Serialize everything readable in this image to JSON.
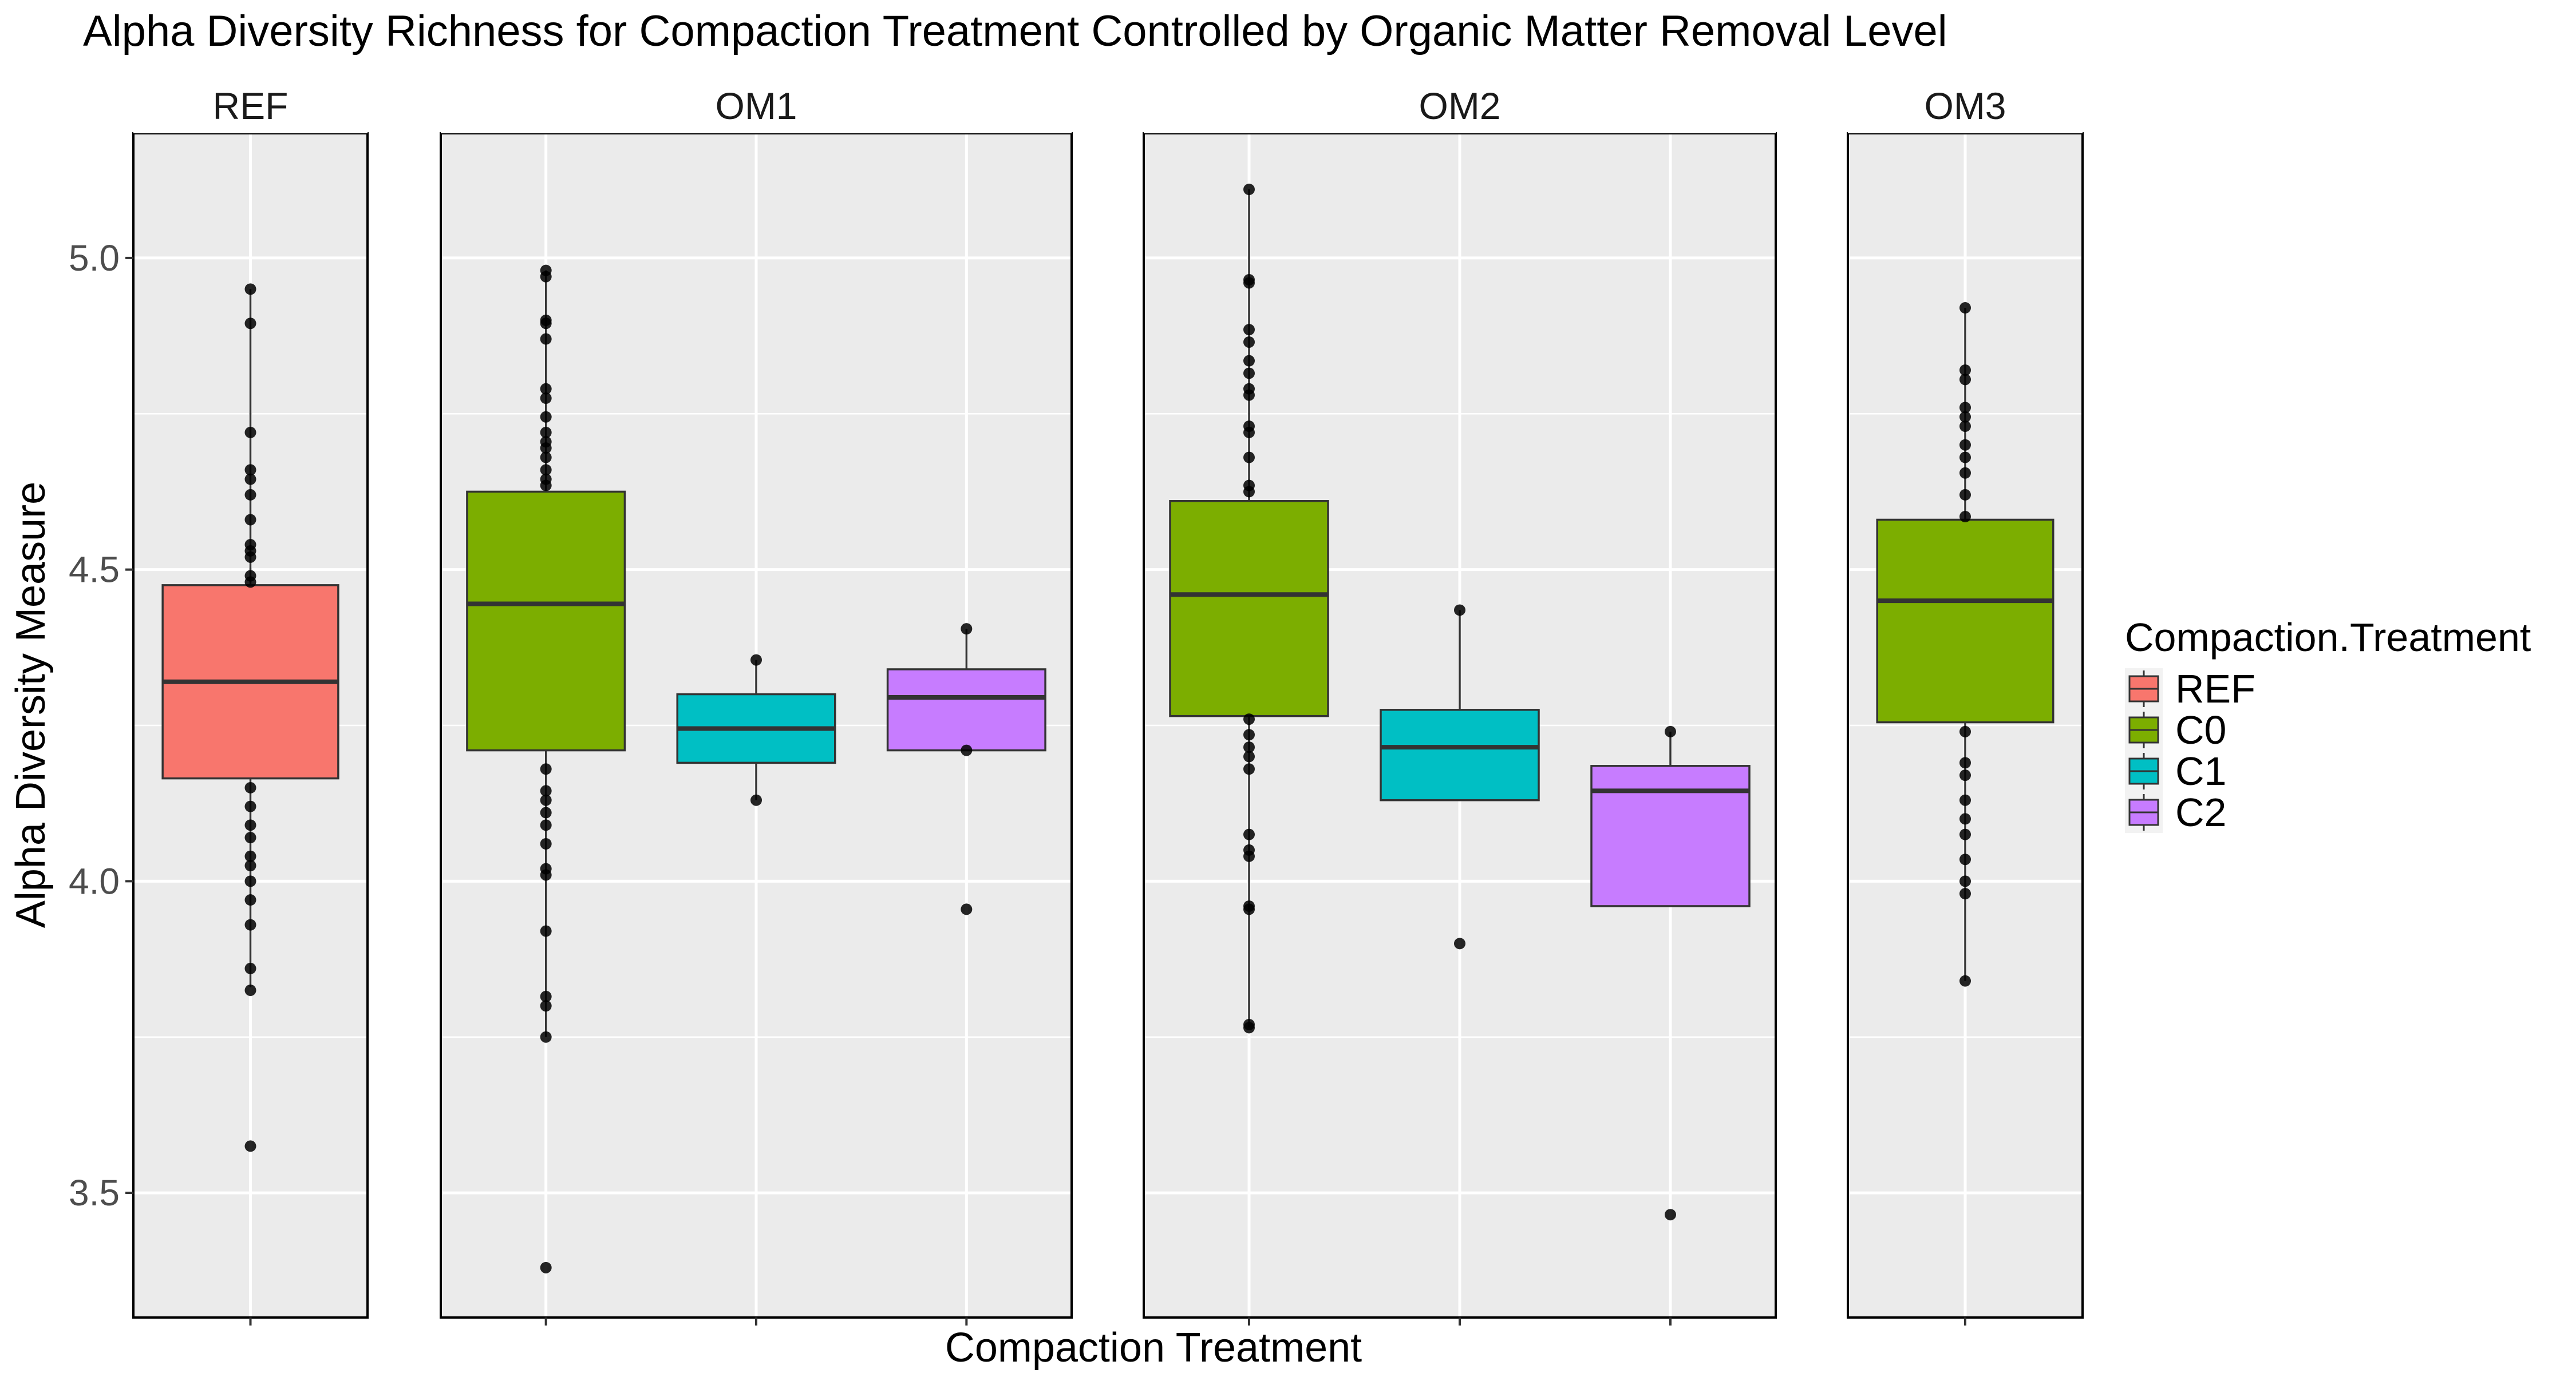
{
  "chart_data": {
    "type": "boxplot",
    "title": "Alpha Diversity Richness for Compaction Treatment Controlled by Organic Matter Removal Level",
    "xlabel": "Compaction Treatment",
    "ylabel": "Alpha Diversity Measure",
    "ylim": [
      3.3,
      5.2
    ],
    "yticks": [
      "3.5",
      "4.0",
      "4.5",
      "5.0"
    ],
    "grid": true,
    "legend": {
      "title": "Compaction.Treatment",
      "placement": "right",
      "entries": [
        {
          "label": "REF",
          "color": "#F8766D"
        },
        {
          "label": "C0",
          "color": "#7CAE00"
        },
        {
          "label": "C1",
          "color": "#00BFC4"
        },
        {
          "label": "C2",
          "color": "#C77CFF"
        }
      ]
    },
    "facets": [
      {
        "label": "REF",
        "categories": [
          "REF"
        ],
        "boxes": [
          {
            "category": "REF",
            "q1": 4.165,
            "median": 4.32,
            "q3": 4.475,
            "whisker_low": 3.83,
            "whisker_high": 4.95,
            "points": [
              4.95,
              4.895,
              4.72,
              4.66,
              4.645,
              4.62,
              4.58,
              4.54,
              4.53,
              4.52,
              4.49,
              4.48,
              4.15,
              4.12,
              4.09,
              4.07,
              4.04,
              4.025,
              4.0,
              3.97,
              3.93,
              3.86,
              3.825,
              3.575
            ]
          }
        ]
      },
      {
        "label": "OM1",
        "categories": [
          "C0",
          "C1",
          "C2"
        ],
        "boxes": [
          {
            "category": "C0",
            "q1": 4.21,
            "median": 4.445,
            "q3": 4.625,
            "whisker_low": 3.75,
            "whisker_high": 4.98,
            "points": [
              4.98,
              4.97,
              4.9,
              4.895,
              4.87,
              4.79,
              4.775,
              4.745,
              4.72,
              4.705,
              4.695,
              4.68,
              4.66,
              4.645,
              4.635,
              4.18,
              4.145,
              4.13,
              4.11,
              4.09,
              4.06,
              4.02,
              4.01,
              3.92,
              3.815,
              3.8,
              3.75,
              3.38
            ]
          },
          {
            "category": "C1",
            "q1": 4.19,
            "median": 4.245,
            "q3": 4.3,
            "whisker_low": 4.13,
            "whisker_high": 4.355,
            "points": [
              4.355,
              4.13
            ]
          },
          {
            "category": "C2",
            "q1": 4.21,
            "median": 4.295,
            "q3": 4.34,
            "whisker_low": 4.21,
            "whisker_high": 4.405,
            "points": [
              4.405,
              4.21,
              3.955
            ]
          }
        ]
      },
      {
        "label": "OM2",
        "categories": [
          "C0",
          "C1",
          "C2"
        ],
        "boxes": [
          {
            "category": "C0",
            "q1": 4.265,
            "median": 4.46,
            "q3": 4.61,
            "whisker_low": 3.765,
            "whisker_high": 5.11,
            "points": [
              5.11,
              4.965,
              4.96,
              4.885,
              4.865,
              4.835,
              4.815,
              4.79,
              4.78,
              4.73,
              4.72,
              4.68,
              4.635,
              4.625,
              4.26,
              4.235,
              4.215,
              4.2,
              4.18,
              4.075,
              4.05,
              4.04,
              3.96,
              3.955,
              3.77,
              3.765
            ]
          },
          {
            "category": "C1",
            "q1": 4.13,
            "median": 4.215,
            "q3": 4.275,
            "whisker_low": 4.13,
            "whisker_high": 4.435,
            "points": [
              4.435,
              3.9
            ]
          },
          {
            "category": "C2",
            "q1": 3.96,
            "median": 4.145,
            "q3": 4.185,
            "whisker_low": 3.96,
            "whisker_high": 4.24,
            "points": [
              4.24,
              3.465
            ]
          }
        ]
      },
      {
        "label": "OM3",
        "categories": [
          "C0"
        ],
        "boxes": [
          {
            "category": "C0",
            "q1": 4.255,
            "median": 4.45,
            "q3": 4.58,
            "whisker_low": 3.84,
            "whisker_high": 4.92,
            "points": [
              4.92,
              4.82,
              4.805,
              4.76,
              4.745,
              4.73,
              4.7,
              4.68,
              4.655,
              4.62,
              4.585,
              4.24,
              4.19,
              4.17,
              4.13,
              4.1,
              4.075,
              4.035,
              4.0,
              3.98,
              3.84
            ]
          }
        ]
      }
    ]
  }
}
